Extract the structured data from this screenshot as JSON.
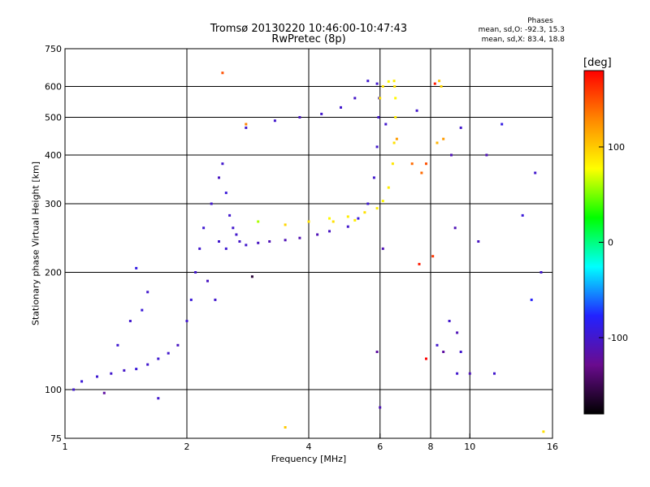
{
  "header": {
    "title": "Tromsø 20130220 10:46:00-10:47:43",
    "subtitle": "RwPretec (8p)",
    "phases_label": "Phases",
    "phase_o": "mean, sd,O: -92.3, 15.3",
    "phase_x": "mean, sd,X:  83.4, 18.8"
  },
  "chart_data": {
    "type": "scatter",
    "xlabel": "Frequency [MHz]",
    "ylabel": "Stationary phase Virtual Height [km]",
    "x_scale": "log",
    "y_scale": "log",
    "xlim": [
      1,
      16
    ],
    "ylim": [
      75,
      750
    ],
    "x_ticks": [
      1,
      2,
      4,
      6,
      8,
      10,
      16
    ],
    "y_ticks": [
      75,
      100,
      200,
      300,
      400,
      500,
      600,
      750
    ],
    "x_gridlines": [
      2,
      4,
      6,
      8,
      10
    ],
    "y_gridlines": [
      100,
      200,
      300,
      400,
      500,
      600
    ],
    "grid": true,
    "colorbar": {
      "label": "[deg]",
      "range": [
        -180,
        180
      ],
      "ticks": [
        100,
        0,
        -100
      ],
      "colormap": [
        "#000000",
        "#6a0b8e",
        "#2222ff",
        "#00ffff",
        "#00ff00",
        "#ffff00",
        "#ff8800",
        "#ff0000"
      ]
    },
    "series": [
      {
        "points": [
          [
            1.05,
            100,
            -100
          ],
          [
            1.1,
            105,
            -95
          ],
          [
            1.2,
            108,
            -98
          ],
          [
            1.3,
            110,
            -100
          ],
          [
            1.4,
            112,
            -102
          ],
          [
            1.5,
            113,
            -95
          ],
          [
            1.6,
            116,
            -100
          ],
          [
            1.7,
            120,
            -98
          ],
          [
            1.8,
            124,
            -100
          ],
          [
            1.9,
            130,
            -105
          ],
          [
            2.0,
            150,
            -100
          ],
          [
            2.05,
            170,
            -95
          ],
          [
            2.1,
            200,
            -100
          ],
          [
            2.15,
            230,
            -100
          ],
          [
            2.2,
            260,
            -98
          ],
          [
            2.3,
            300,
            -100
          ],
          [
            2.4,
            350,
            -105
          ],
          [
            2.45,
            380,
            -100
          ],
          [
            2.5,
            320,
            -95
          ],
          [
            2.55,
            280,
            -100
          ],
          [
            2.6,
            260,
            -100
          ],
          [
            2.7,
            240,
            -102
          ],
          [
            2.8,
            235,
            -100
          ],
          [
            3.0,
            238,
            -105
          ],
          [
            3.2,
            240,
            -110
          ],
          [
            3.5,
            242,
            -110
          ],
          [
            3.8,
            245,
            -112
          ],
          [
            4.2,
            250,
            -110
          ],
          [
            4.5,
            255,
            -105
          ],
          [
            5.0,
            262,
            -100
          ],
          [
            5.3,
            275,
            -95
          ],
          [
            5.6,
            300,
            -98
          ],
          [
            5.8,
            350,
            -100
          ],
          [
            5.9,
            420,
            -100
          ],
          [
            5.95,
            500,
            -100
          ],
          [
            5.97,
            560,
            -100
          ],
          [
            5.9,
            610,
            -100
          ],
          [
            5.6,
            620,
            -98
          ],
          [
            5.2,
            560,
            -102
          ],
          [
            4.8,
            530,
            -100
          ],
          [
            4.3,
            510,
            -100
          ],
          [
            3.8,
            500,
            -105
          ],
          [
            3.3,
            490,
            -100
          ],
          [
            2.8,
            470,
            -100
          ],
          [
            1.6,
            178,
            -100
          ],
          [
            1.55,
            160,
            -95
          ],
          [
            1.45,
            150,
            -100
          ],
          [
            1.35,
            130,
            -98
          ],
          [
            2.35,
            170,
            -100
          ],
          [
            2.25,
            190,
            -105
          ],
          [
            2.4,
            240,
            -100
          ],
          [
            2.5,
            230,
            -98
          ],
          [
            2.65,
            250,
            -100
          ]
        ]
      },
      {
        "points": [
          [
            3.5,
            265,
            95
          ],
          [
            4.0,
            270,
            90
          ],
          [
            4.5,
            275,
            80
          ],
          [
            5.0,
            278,
            85
          ],
          [
            5.5,
            285,
            90
          ],
          [
            5.9,
            292,
            85
          ],
          [
            6.1,
            305,
            80
          ],
          [
            6.3,
            330,
            85
          ],
          [
            6.45,
            380,
            88
          ],
          [
            6.5,
            430,
            90
          ],
          [
            6.55,
            500,
            85
          ],
          [
            6.55,
            560,
            80
          ],
          [
            6.52,
            600,
            90
          ],
          [
            6.5,
            620,
            85
          ],
          [
            6.3,
            618,
            80
          ],
          [
            6.1,
            600,
            88
          ],
          [
            6.0,
            560,
            90
          ],
          [
            4.6,
            270,
            90
          ],
          [
            5.2,
            272,
            85
          ],
          [
            2.8,
            480,
            130
          ],
          [
            2.45,
            650,
            150
          ],
          [
            3.0,
            270,
            60
          ],
          [
            6.6,
            440,
            120
          ]
        ]
      },
      {
        "points": [
          [
            8.2,
            610,
            170
          ],
          [
            8.4,
            620,
            100
          ],
          [
            8.5,
            600,
            95
          ],
          [
            9.5,
            470,
            -100
          ],
          [
            9.2,
            260,
            -110
          ],
          [
            10.5,
            240,
            -105
          ],
          [
            12.0,
            480,
            -90
          ],
          [
            13.5,
            280,
            -95
          ],
          [
            14.5,
            360,
            -100
          ],
          [
            14.2,
            170,
            -80
          ],
          [
            15.0,
            200,
            -100
          ],
          [
            15.2,
            78,
            90
          ],
          [
            7.6,
            360,
            140
          ],
          [
            7.8,
            380,
            150
          ],
          [
            8.3,
            430,
            110
          ],
          [
            8.6,
            440,
            120
          ],
          [
            9.0,
            400,
            -110
          ],
          [
            8.1,
            220,
            160
          ],
          [
            7.5,
            210,
            170
          ],
          [
            7.2,
            380,
            140
          ],
          [
            6.0,
            90,
            -110
          ],
          [
            5.9,
            125,
            -120
          ],
          [
            8.3,
            130,
            -100
          ],
          [
            8.9,
            150,
            -100
          ],
          [
            9.3,
            140,
            -110
          ],
          [
            9.3,
            110,
            -100
          ],
          [
            9.5,
            125,
            -100
          ],
          [
            10.0,
            110,
            -110
          ],
          [
            11.5,
            110,
            -100
          ],
          [
            7.8,
            120,
            180
          ],
          [
            3.5,
            80,
            100
          ],
          [
            1.7,
            95,
            -100
          ],
          [
            2.9,
            195,
            -160
          ],
          [
            6.1,
            230,
            -110
          ],
          [
            6.2,
            480,
            -100
          ],
          [
            7.4,
            520,
            -100
          ],
          [
            11.0,
            400,
            -110
          ],
          [
            8.6,
            125,
            -120
          ],
          [
            1.5,
            205,
            -90
          ],
          [
            1.25,
            98,
            -120
          ]
        ]
      }
    ]
  }
}
